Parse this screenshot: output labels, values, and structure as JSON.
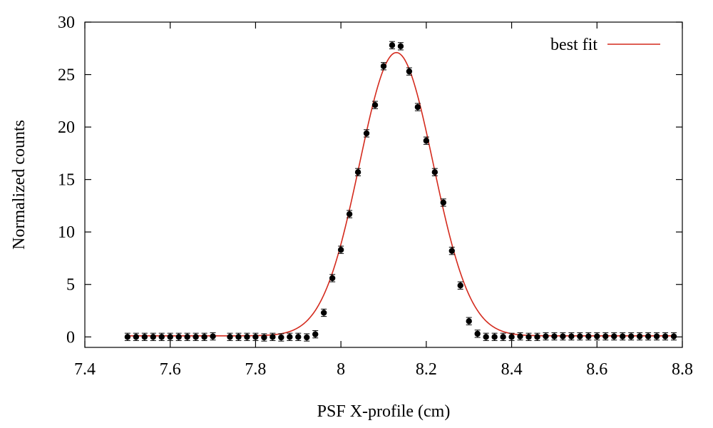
{
  "chart_data": {
    "type": "scatter",
    "title": "",
    "xlabel": "PSF X-profile (cm)",
    "ylabel": "Normalized counts",
    "xlim": [
      7.4,
      8.8
    ],
    "ylim": [
      -1,
      30
    ],
    "x_ticks": [
      7.4,
      7.6,
      7.8,
      8.0,
      8.2,
      8.4,
      8.6,
      8.8
    ],
    "x_tick_labels": [
      "7.4",
      "7.6",
      "7.8",
      "8",
      "8.2",
      "8.4",
      "8.6",
      "8.8"
    ],
    "y_ticks": [
      0,
      5,
      10,
      15,
      20,
      25,
      30
    ],
    "y_tick_labels": [
      "0",
      "5",
      "10",
      "15",
      "20",
      "25",
      "30"
    ],
    "grid": false,
    "legend": {
      "position": "top-right",
      "entries": [
        "best fit"
      ]
    },
    "series": [
      {
        "name": "data",
        "marker": "circle",
        "color": "#000000",
        "x": [
          7.5,
          7.52,
          7.54,
          7.56,
          7.58,
          7.6,
          7.62,
          7.64,
          7.66,
          7.68,
          7.7,
          7.74,
          7.76,
          7.78,
          7.8,
          7.82,
          7.84,
          7.86,
          7.88,
          7.9,
          7.92,
          7.94,
          7.96,
          7.98,
          8.0,
          8.02,
          8.04,
          8.06,
          8.08,
          8.1,
          8.12,
          8.14,
          8.16,
          8.18,
          8.2,
          8.22,
          8.24,
          8.26,
          8.28,
          8.3,
          8.32,
          8.34,
          8.36,
          8.38,
          8.4,
          8.42,
          8.44,
          8.46,
          8.48,
          8.5,
          8.52,
          8.54,
          8.56,
          8.58,
          8.6,
          8.62,
          8.64,
          8.66,
          8.68,
          8.7,
          8.72,
          8.74,
          8.76,
          8.78
        ],
        "y": [
          0.0,
          0.0,
          0.0,
          0.0,
          0.0,
          0.0,
          0.0,
          0.0,
          0.0,
          0.0,
          0.05,
          0.0,
          0.0,
          0.0,
          0.0,
          -0.05,
          0.0,
          -0.05,
          0.0,
          0.0,
          -0.05,
          0.25,
          2.3,
          5.6,
          8.3,
          11.7,
          15.7,
          19.4,
          22.1,
          25.8,
          27.8,
          27.7,
          25.3,
          21.9,
          18.7,
          15.7,
          12.8,
          8.2,
          4.9,
          1.5,
          0.3,
          0.0,
          0.0,
          0.0,
          0.0,
          0.05,
          0.0,
          0.0,
          0.05,
          0.05,
          0.05,
          0.05,
          0.05,
          0.05,
          0.05,
          0.05,
          0.05,
          0.05,
          0.05,
          0.05,
          0.05,
          0.05,
          0.05,
          0.05
        ],
        "error": 0.35
      },
      {
        "name": "best fit",
        "type": "line",
        "color": "#d42a1d",
        "model": "gaussian",
        "amplitude": 27.0,
        "mean": 8.13,
        "sigma": 0.0865,
        "baseline": 0.1,
        "x_range": [
          7.5,
          8.78
        ]
      }
    ]
  }
}
